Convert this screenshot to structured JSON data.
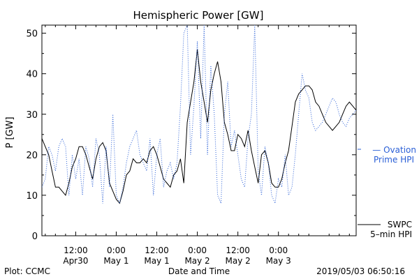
{
  "chart_data": {
    "type": "line",
    "title": "Hemispheric Power [GW]",
    "ylabel": "P [GW]",
    "xlabel": "Date and Time",
    "ylim": [
      0,
      52
    ],
    "xlim": [
      2,
      95
    ],
    "yticks": [
      0,
      10,
      20,
      30,
      40,
      50
    ],
    "xticks": [
      {
        "x": 12,
        "top": "12:00",
        "bottom": "Apr30"
      },
      {
        "x": 24,
        "top": "0:00",
        "bottom": "May 1"
      },
      {
        "x": 36,
        "top": "12:00",
        "bottom": "May 1"
      },
      {
        "x": 48,
        "top": "0:00",
        "bottom": "May 2"
      },
      {
        "x": 60,
        "top": "12:00",
        "bottom": "May 2"
      },
      {
        "x": 72,
        "top": "0:00",
        "bottom": "May 3"
      }
    ],
    "x_unit": "hours from 2019-04-30 00:00",
    "series": [
      {
        "name": "SWPC 5-min HPI",
        "legend": [
          "SWPC",
          "5–min HPI"
        ],
        "color": "#000000",
        "style": "solid",
        "x": [
          2,
          3,
          4,
          5,
          6,
          7,
          8,
          9,
          10,
          11,
          12,
          13,
          14,
          15,
          16,
          17,
          18,
          19,
          20,
          21,
          22,
          23,
          24,
          25,
          26,
          27,
          28,
          29,
          30,
          31,
          32,
          33,
          34,
          35,
          36,
          37,
          38,
          39,
          40,
          41,
          42,
          43,
          44,
          45,
          46,
          47,
          48,
          49,
          50,
          51,
          52,
          53,
          54,
          55,
          56,
          57,
          58,
          59,
          60,
          61,
          62,
          63,
          64,
          65,
          66,
          67,
          68,
          69,
          70,
          71,
          72,
          73,
          74,
          75,
          76,
          77,
          78,
          79,
          80,
          81,
          82,
          83,
          84,
          85,
          86,
          87,
          88,
          89,
          90,
          91,
          92,
          93,
          94,
          95
        ],
        "y": [
          24,
          22,
          20,
          16,
          12,
          12,
          11,
          10,
          13,
          17,
          19,
          22,
          22,
          20,
          17,
          14,
          19,
          22,
          23,
          21,
          13,
          11,
          9,
          8,
          11,
          15,
          16,
          19,
          18,
          18,
          19,
          18,
          21,
          22,
          20,
          17,
          14,
          13,
          12,
          15,
          16,
          19,
          13,
          28,
          33,
          38,
          46,
          38,
          33,
          28,
          36,
          40,
          43,
          38,
          28,
          25,
          21,
          21,
          25,
          24,
          22,
          26,
          21,
          17,
          13,
          20,
          21,
          18,
          13,
          12,
          12,
          14,
          18,
          21,
          27,
          33,
          35,
          36,
          37,
          37,
          36,
          33,
          32,
          30,
          28,
          27,
          26,
          27,
          28,
          30,
          32,
          33,
          32,
          31
        ]
      },
      {
        "name": "Ovation Prime HPI",
        "legend": [
          "— Ovation",
          "Prime HPI"
        ],
        "color": "#2a5fd6",
        "style": "dotted",
        "x": [
          2,
          3,
          4,
          5,
          6,
          7,
          8,
          9,
          10,
          11,
          12,
          13,
          14,
          15,
          16,
          17,
          18,
          19,
          20,
          21,
          22,
          23,
          24,
          25,
          26,
          27,
          28,
          29,
          30,
          31,
          32,
          33,
          34,
          35,
          36,
          37,
          38,
          39,
          40,
          41,
          42,
          43,
          44,
          45,
          46,
          47,
          48,
          49,
          50,
          51,
          52,
          53,
          54,
          55,
          56,
          57,
          58,
          59,
          60,
          61,
          62,
          63,
          64,
          65,
          66,
          67,
          68,
          69,
          70,
          71,
          72,
          73,
          74,
          75,
          76,
          77,
          78,
          79,
          80,
          81,
          82,
          83,
          84,
          85,
          86,
          87,
          88,
          89,
          90,
          91,
          92,
          93,
          94,
          95
        ],
        "y": [
          12,
          14,
          22,
          20,
          16,
          22,
          24,
          22,
          10,
          20,
          14,
          19,
          10,
          22,
          19,
          12,
          24,
          20,
          8,
          22,
          12,
          30,
          10,
          8,
          12,
          18,
          22,
          24,
          26,
          20,
          18,
          16,
          24,
          10,
          20,
          24,
          12,
          16,
          18,
          14,
          18,
          32,
          50,
          52,
          20,
          32,
          48,
          24,
          52,
          20,
          42,
          30,
          10,
          8,
          30,
          38,
          22,
          26,
          20,
          14,
          12,
          24,
          30,
          52,
          16,
          10,
          22,
          18,
          10,
          8,
          14,
          12,
          20,
          10,
          12,
          20,
          30,
          40,
          36,
          34,
          28,
          26,
          27,
          28,
          30,
          32,
          34,
          33,
          30,
          28,
          27,
          29,
          30,
          31
        ]
      }
    ],
    "legend_position": "right",
    "footer": {
      "left": "Plot: CCMC",
      "right": "2019/05/03 06:50:16"
    }
  }
}
